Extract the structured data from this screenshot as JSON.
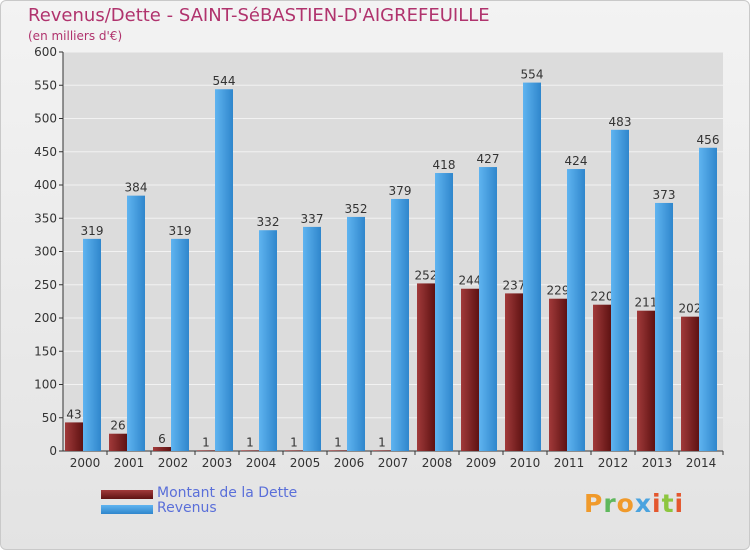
{
  "title": "Revenus/Dette - SAINT-SéBASTIEN-D'AIGREFEUILLE",
  "subtitle": "(en milliers d'€)",
  "logo": {
    "text": "Proxiti",
    "colors": [
      "#f09a2b",
      "#5fb85c",
      "#f09a2b",
      "#4aa3df",
      "#e4572e",
      "#8dc63f",
      "#e4572e"
    ]
  },
  "chart_data": {
    "type": "bar",
    "title": "Revenus/Dette - SAINT-SéBASTIEN-D'AIGREFEUILLE",
    "ylabel": "(en milliers d'€)",
    "ylim": [
      0,
      600
    ],
    "yticks": [
      0,
      50,
      100,
      150,
      200,
      250,
      300,
      350,
      400,
      450,
      500,
      550,
      600
    ],
    "grid": true,
    "legend": "bottom-left",
    "categories": [
      "2000",
      "2001",
      "2002",
      "2003",
      "2004",
      "2005",
      "2006",
      "2007",
      "2008",
      "2009",
      "2010",
      "2011",
      "2012",
      "2013",
      "2014"
    ],
    "series": [
      {
        "name": "Montant de la Dette",
        "color": "#8b2a2a",
        "values": [
          43,
          26,
          6,
          1,
          1,
          1,
          1,
          1,
          252,
          244,
          237,
          229,
          220,
          211,
          202
        ]
      },
      {
        "name": "Revenus",
        "color": "#4aa3e6",
        "values": [
          319,
          384,
          319,
          544,
          332,
          337,
          352,
          379,
          418,
          427,
          554,
          424,
          483,
          373,
          456
        ]
      }
    ]
  }
}
